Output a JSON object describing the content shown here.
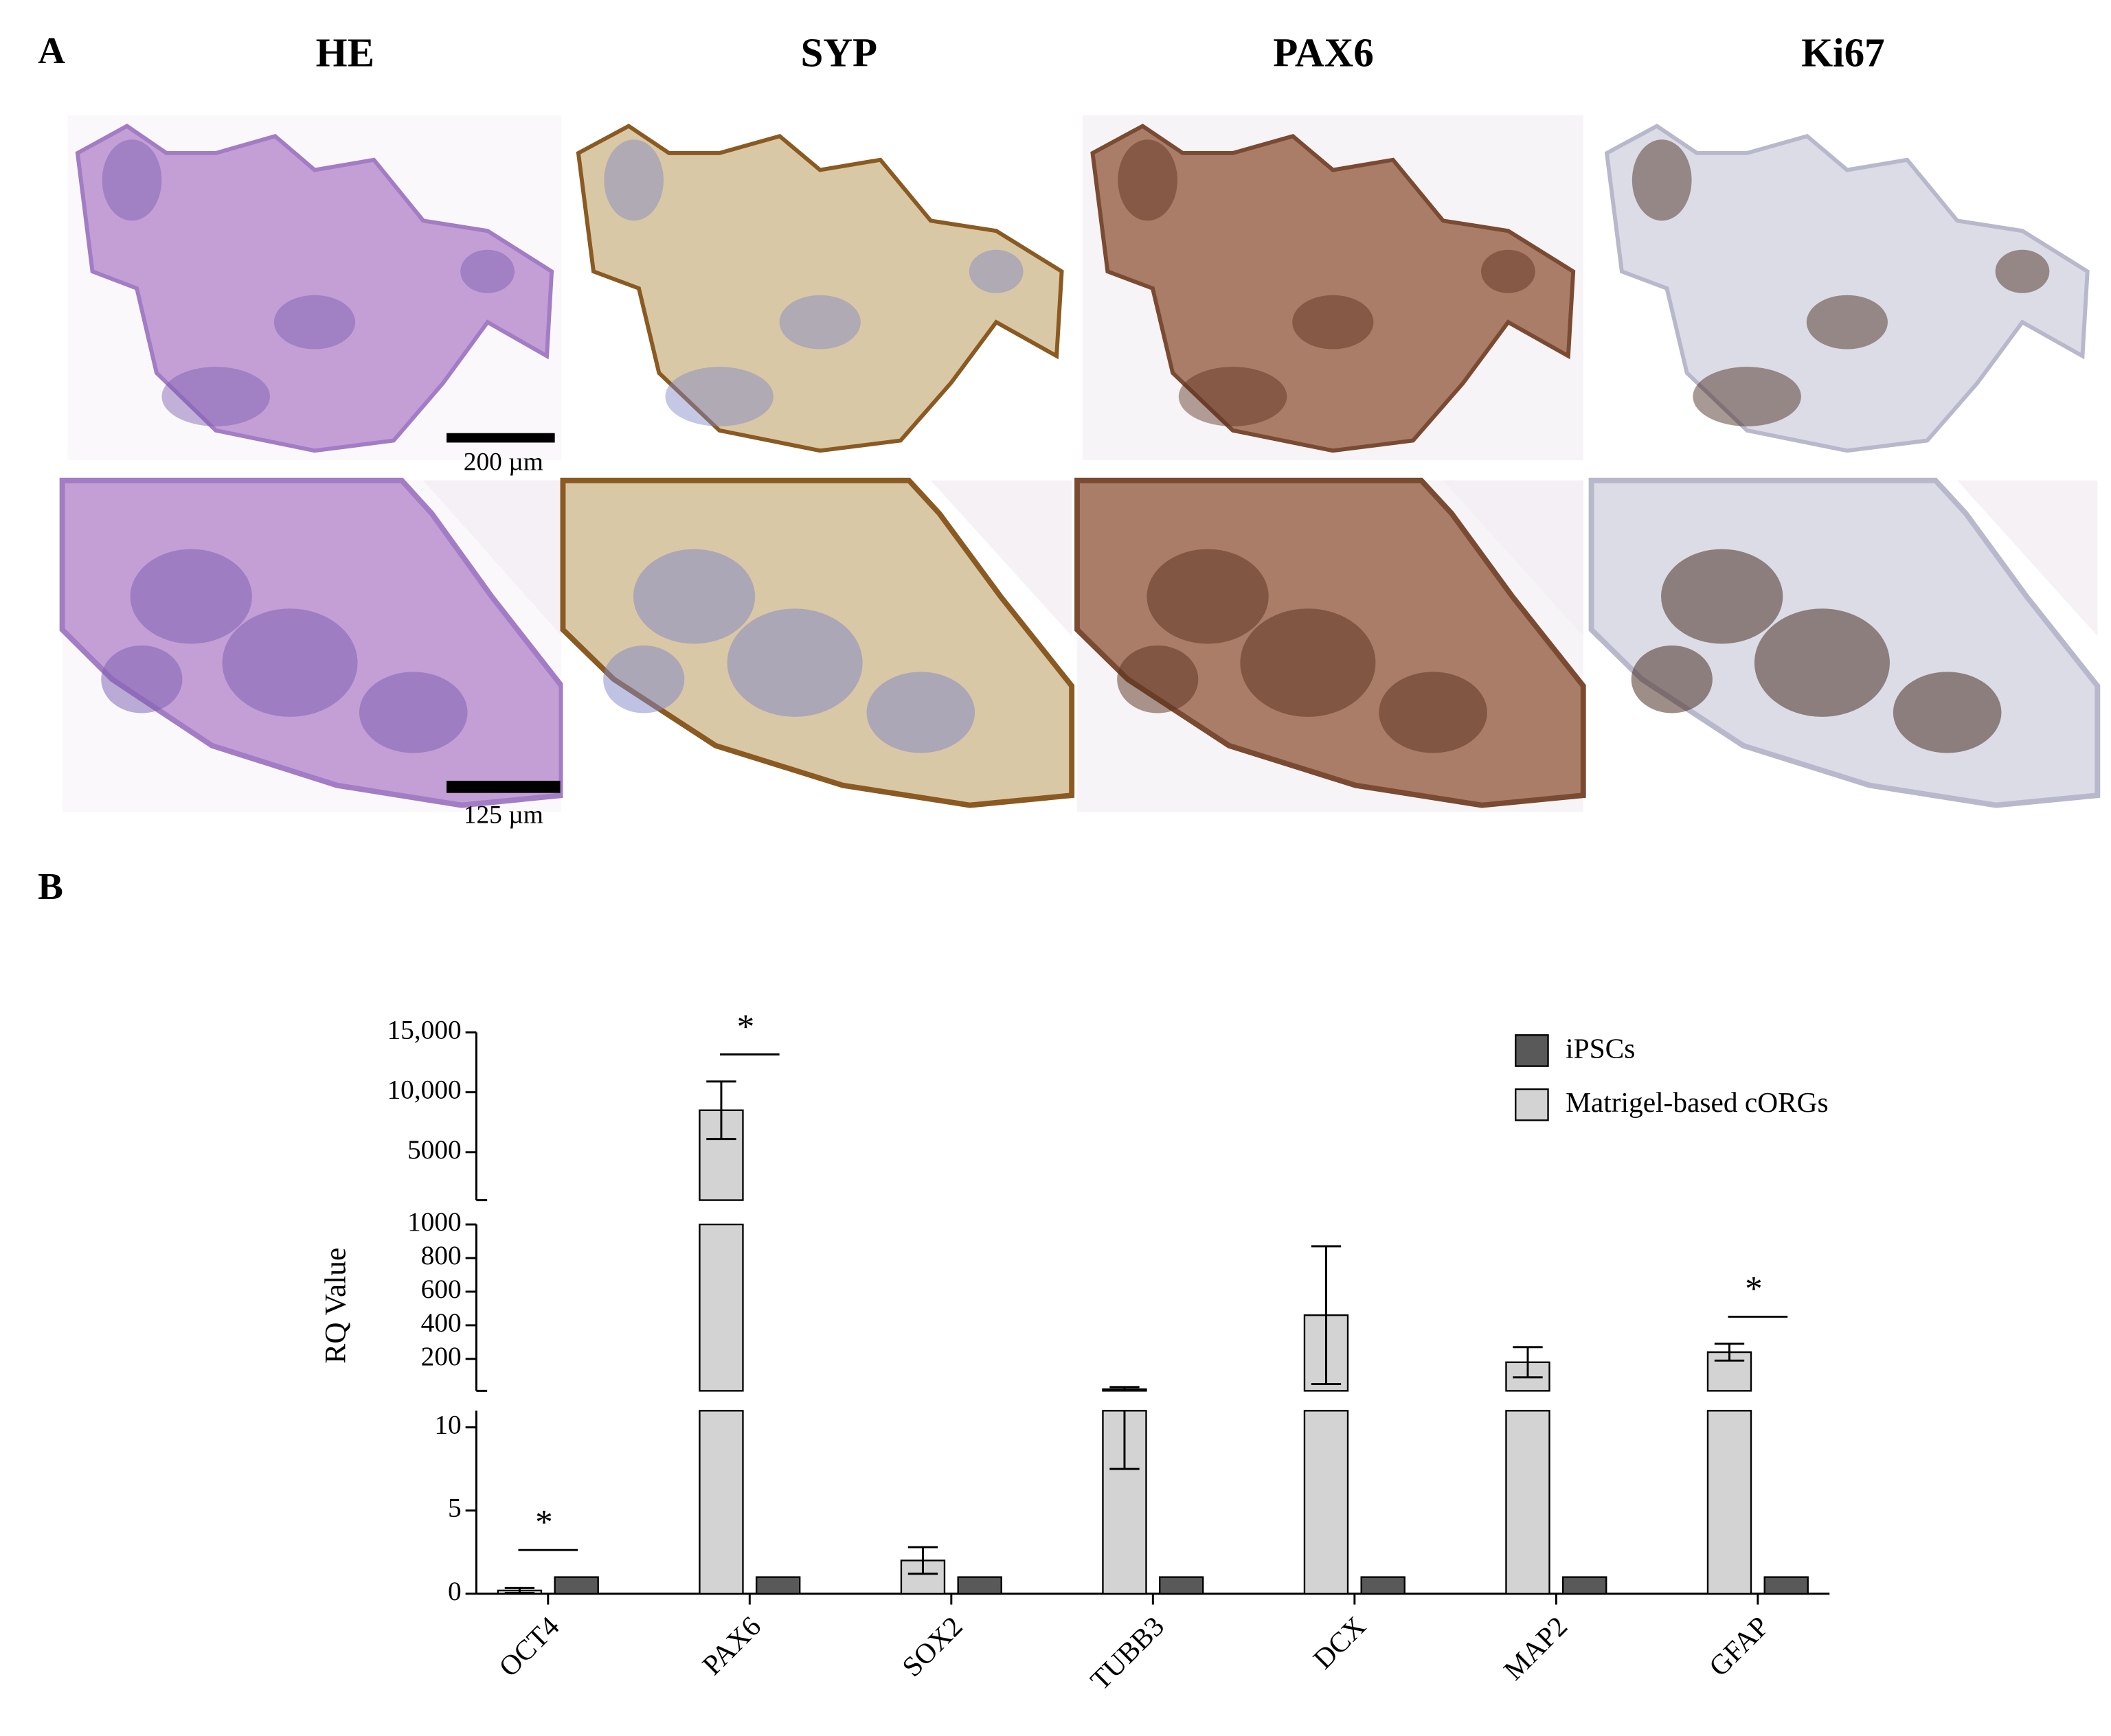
{
  "panel_a": {
    "label": "A",
    "columns": [
      "HE",
      "SYP",
      "PAX6",
      "Ki67"
    ],
    "scale_bars": [
      "200 µm",
      "125 µm"
    ]
  },
  "chart_data": {
    "type": "bar",
    "panel_label": "B",
    "ylabel": "RQ Value",
    "categories": [
      "OCT4",
      "PAX6",
      "SOX2",
      "TUBB3",
      "DCX",
      "MAP2",
      "GFAP"
    ],
    "series": [
      {
        "name": "iPSCs",
        "color": "#595959",
        "values": [
          1,
          1,
          1,
          1,
          1,
          1,
          1
        ]
      },
      {
        "name": "Matrigel-based cORGs",
        "color": "#d3d3d3",
        "values": [
          0.2,
          8500,
          2,
          20,
          460,
          180,
          240
        ],
        "errors": [
          0.15,
          2400,
          0.8,
          12.5,
          410,
          90,
          50
        ]
      }
    ],
    "y_segments": [
      {
        "ylim": [
          0,
          11
        ],
        "yticks": [
          0,
          5,
          10
        ]
      },
      {
        "ylim": [
          10,
          1000
        ],
        "yticks": [
          200,
          400,
          600,
          800,
          1000
        ]
      },
      {
        "ylim": [
          1000,
          15000
        ],
        "yticks": [
          5000,
          {
            "value": 10000,
            "label": "10,000"
          },
          {
            "value": 15000,
            "label": "15,000"
          }
        ]
      }
    ],
    "annotations": [
      {
        "category": "OCT4",
        "text": "*"
      },
      {
        "category": "PAX6",
        "text": "*"
      },
      {
        "category": "GFAP",
        "text": "*"
      }
    ]
  }
}
